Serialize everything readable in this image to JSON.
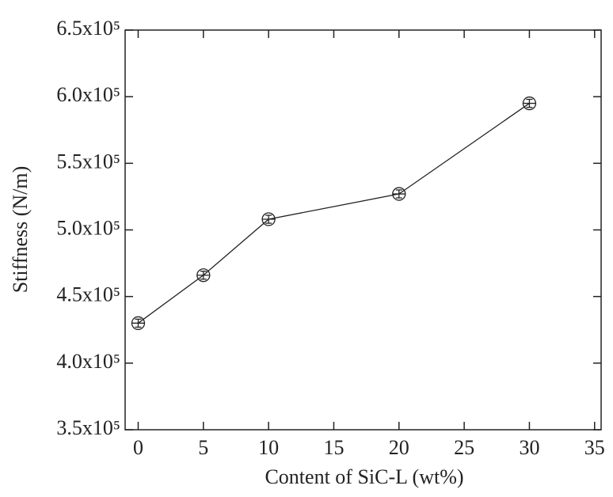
{
  "chart_data": {
    "type": "line",
    "x_label": "Content of SiC-L (wt%)",
    "y_label": "Stiffness (N/m)",
    "x": [
      0,
      5,
      10,
      20,
      30
    ],
    "series": [
      {
        "values": [
          430000,
          466000,
          508000,
          527000,
          595000
        ],
        "errors": [
          3000,
          3000,
          3000,
          3000,
          3000
        ],
        "color": "#222222"
      }
    ],
    "xlim": [
      -1,
      35.5
    ],
    "xticks": [
      0,
      5,
      10,
      15,
      20,
      25,
      30,
      35
    ],
    "ylim": [
      350000,
      650000
    ],
    "yticks": [
      {
        "value": 350000,
        "label": "3.5x10⁵"
      },
      {
        "value": 400000,
        "label": "4.0x10⁵"
      },
      {
        "value": 450000,
        "label": "4.5x10⁵"
      },
      {
        "value": 500000,
        "label": "5.0x10⁵"
      },
      {
        "value": 550000,
        "label": "5.5x10⁵"
      },
      {
        "value": 600000,
        "label": "6.0x10⁵"
      },
      {
        "value": 650000,
        "label": "6.5x10⁵"
      }
    ]
  }
}
